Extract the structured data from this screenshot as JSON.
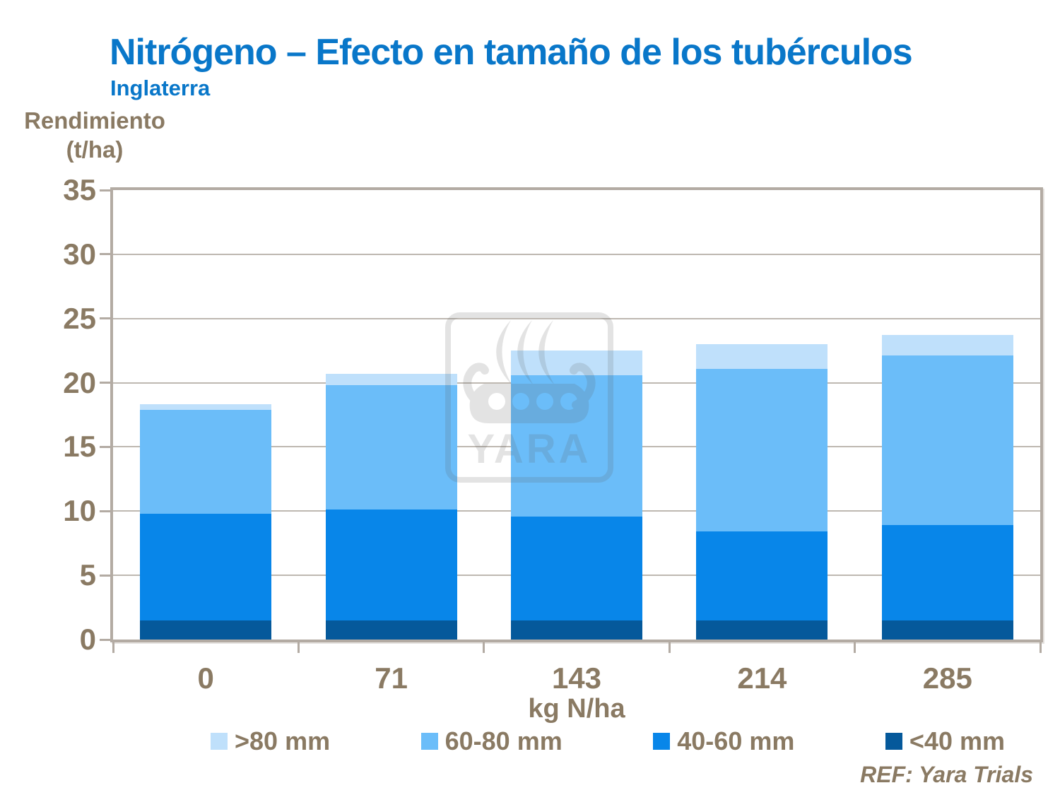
{
  "header": {
    "title": "Nitrógeno – Efecto en tamaño de los tubérculos",
    "subtitle": "Inglaterra"
  },
  "y_axis": {
    "line1": "Rendimiento",
    "line2": "(t/ha)"
  },
  "x_axis": {
    "label": "kg N/ha"
  },
  "footer": {
    "ref": "REF: Yara Trials"
  },
  "watermark": {
    "text": "YARA"
  },
  "colors": {
    "title_blue": "#0977c9",
    "axis_text_brown": "#8a7a63",
    "grid_frame": "#b3aba3",
    "background": "#ffffff"
  },
  "chart_data": {
    "type": "bar",
    "stacked": true,
    "title": "Nitrógeno – Efecto en tamaño de los tubérculos",
    "subtitle": "Inglaterra",
    "xlabel": "kg N/ha",
    "ylabel": "Rendimiento (t/ha)",
    "ylim": [
      0,
      35
    ],
    "ytick_step": 5,
    "grid": true,
    "legend_position": "bottom",
    "categories": [
      "0",
      "71",
      "143",
      "214",
      "285"
    ],
    "series": [
      {
        "name": "<40 mm",
        "color": "#05599b",
        "values": [
          1.5,
          1.5,
          1.5,
          1.5,
          1.5
        ]
      },
      {
        "name": "40-60 mm",
        "color": "#0886e9",
        "values": [
          8.3,
          8.6,
          8.1,
          6.9,
          7.4
        ]
      },
      {
        "name": "60-80 mm",
        "color": "#6bbdf9",
        "values": [
          8.1,
          9.7,
          11.0,
          12.7,
          13.2
        ]
      },
      {
        "name": ">80 mm",
        "color": "#bfe0fb",
        "values": [
          0.4,
          0.9,
          1.9,
          1.9,
          1.6
        ]
      }
    ],
    "totals": [
      18.3,
      20.7,
      22.5,
      23.0,
      23.7
    ],
    "legend_order": [
      ">80 mm",
      "60-80 mm",
      "40-60 mm",
      "<40 mm"
    ]
  }
}
